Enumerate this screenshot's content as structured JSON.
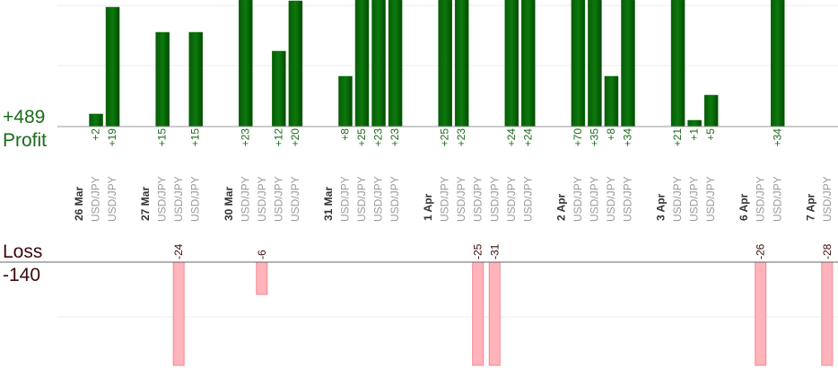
{
  "chart_data": {
    "type": "bar",
    "profit_label": "Profit",
    "profit_total": "+489",
    "loss_label": "Loss",
    "loss_total": "-140",
    "profit_color": "#0b6b0b",
    "loss_color": "#ffb3ba",
    "ylim": [
      0,
      20
    ],
    "y2lim": [
      0,
      -19
    ],
    "days": [
      {
        "date": "26 Mar",
        "trades": [
          {
            "symbol": "USD/JPY",
            "value": 2,
            "value_label": "+2"
          },
          {
            "symbol": "USD/JPY",
            "value": 19,
            "value_label": "+19"
          }
        ]
      },
      {
        "date": "27 Mar",
        "trades": [
          {
            "symbol": "USD/JPY",
            "value": 15,
            "value_label": "+15"
          },
          {
            "symbol": "USD/JPY",
            "value": -24
          },
          {
            "symbol": "USD/JPY",
            "value": 15,
            "value_label": "+15"
          }
        ]
      },
      {
        "date": "30 Mar",
        "trades": [
          {
            "symbol": "USD/JPY",
            "value": 23,
            "value_label": "+23"
          },
          {
            "symbol": "USD/JPY",
            "value": -6
          },
          {
            "symbol": "USD/JPY",
            "value": 12,
            "value_label": "+12"
          },
          {
            "symbol": "USD/JPY",
            "value": 20,
            "value_label": "+20"
          }
        ]
      },
      {
        "date": "31 Mar",
        "trades": [
          {
            "symbol": "USD/JPY",
            "value": 8,
            "value_label": "+8"
          },
          {
            "symbol": "USD/JPY",
            "value": 25,
            "value_label": "+25"
          },
          {
            "symbol": "USD/JPY",
            "value": 23,
            "value_label": "+23"
          },
          {
            "symbol": "USD/JPY",
            "value": 23,
            "value_label": "+23"
          }
        ]
      },
      {
        "date": "1 Apr",
        "trades": [
          {
            "symbol": "USD/JPY",
            "value": 25,
            "value_label": "+25"
          },
          {
            "symbol": "USD/JPY",
            "value": 23,
            "value_label": "+23"
          },
          {
            "symbol": "USD/JPY",
            "value": -25
          },
          {
            "symbol": "USD/JPY",
            "value": -31
          },
          {
            "symbol": "USD/JPY",
            "value": 24,
            "value_label": "+24"
          },
          {
            "symbol": "USD/JPY",
            "value": 24,
            "value_label": "+24"
          }
        ]
      },
      {
        "date": "2 Apr",
        "trades": [
          {
            "symbol": "USD/JPY",
            "value": 70,
            "value_label": "+70"
          },
          {
            "symbol": "USD/JPY",
            "value": 35,
            "value_label": "+35"
          },
          {
            "symbol": "USD/JPY",
            "value": 8,
            "value_label": "+8"
          },
          {
            "symbol": "USD/JPY",
            "value": 34,
            "value_label": "+34"
          }
        ]
      },
      {
        "date": "3 Apr",
        "trades": [
          {
            "symbol": "USD/JPY",
            "value": 21,
            "value_label": "+21"
          },
          {
            "symbol": "USD/JPY",
            "value": 1,
            "value_label": "+1"
          },
          {
            "symbol": "USD/JPY",
            "value": 5,
            "value_label": "+5"
          }
        ]
      },
      {
        "date": "6 Apr",
        "trades": [
          {
            "symbol": "USD/JPY",
            "value": -26
          },
          {
            "symbol": "USD/JPY",
            "value": 34,
            "value_label": "+34"
          }
        ]
      },
      {
        "date": "7 Apr",
        "trades": [
          {
            "symbol": "USD/JPY",
            "value": -28
          }
        ]
      }
    ]
  }
}
